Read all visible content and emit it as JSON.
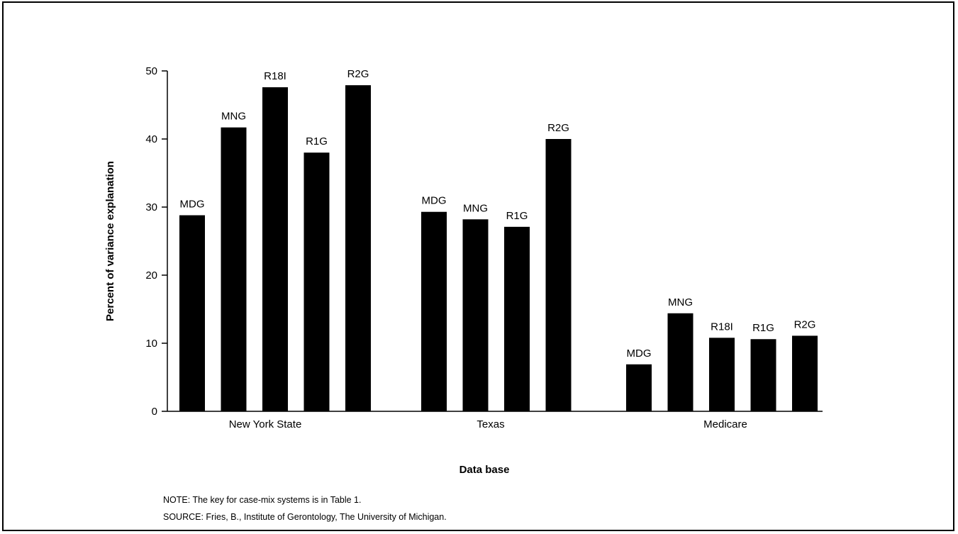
{
  "chart_data": {
    "type": "bar",
    "xlabel": "Data base",
    "ylabel": "Percent of variance explanation",
    "ylim": [
      0,
      50
    ],
    "yticks": [
      0,
      10,
      20,
      30,
      40,
      50
    ],
    "grid": false,
    "legend": "none",
    "bar_color": "#000000",
    "groups": [
      {
        "name": "New York State",
        "bars": [
          {
            "label": "MDG",
            "value": 28.8
          },
          {
            "label": "MNG",
            "value": 41.7
          },
          {
            "label": "R18I",
            "value": 47.6
          },
          {
            "label": "R1G",
            "value": 38.0
          },
          {
            "label": "R2G",
            "value": 47.9
          }
        ]
      },
      {
        "name": "Texas",
        "bars": [
          {
            "label": "MDG",
            "value": 29.3
          },
          {
            "label": "MNG",
            "value": 28.2
          },
          {
            "label": "R1G",
            "value": 27.1
          },
          {
            "label": "R2G",
            "value": 40.0
          }
        ]
      },
      {
        "name": "Medicare",
        "bars": [
          {
            "label": "MDG",
            "value": 6.9
          },
          {
            "label": "MNG",
            "value": 14.4
          },
          {
            "label": "R18I",
            "value": 10.8
          },
          {
            "label": "R1G",
            "value": 10.6
          },
          {
            "label": "R2G",
            "value": 11.1
          }
        ]
      }
    ]
  },
  "notes": {
    "note": "NOTE:  The key for case-mix systems is in Table 1.",
    "source": "SOURCE:  Fries, B., Institute of Gerontology, The University of Michigan."
  }
}
